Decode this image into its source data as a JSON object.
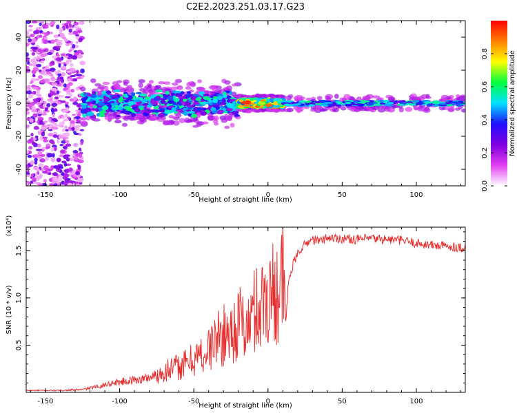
{
  "title": "C2E2.2023.251.03.17.G23",
  "chart_data": [
    {
      "type": "heatmap",
      "title": "C2E2.2023.251.03.17.G23",
      "xlabel": "Height of straight line (km)",
      "ylabel": "Frequency (Hz)",
      "xlim": [
        -163,
        133
      ],
      "ylim": [
        -50,
        50
      ],
      "x_ticks": [
        -150,
        -100,
        -50,
        0,
        50,
        100
      ],
      "x_tick_labels": [
        "-150",
        "-100",
        "-50",
        "0",
        "50",
        "100"
      ],
      "y_ticks": [
        -40,
        -20,
        0,
        20,
        40
      ],
      "y_tick_labels": [
        "-40",
        "-20",
        "0",
        "20",
        "40"
      ],
      "grid": false,
      "colorbar": {
        "label": "Normalized spectral amplitude",
        "range": [
          0,
          1
        ],
        "ticks": [
          0,
          0.2,
          0.4,
          0.6,
          0.8
        ],
        "tick_labels": [
          "0.0",
          "0.2",
          "0.4",
          "0.6",
          "0.8"
        ],
        "colormap": "rainbow: white, magenta, purple, blue, cyan, green, yellow, orange, red",
        "colors": [
          "#ffffff",
          "#e040f0",
          "#8000e0",
          "#2010ff",
          "#00e0ff",
          "#00ff40",
          "#ffff00",
          "#ff8000",
          "#ff0000"
        ]
      },
      "regions": [
        {
          "x_range": [
            -163,
            -125
          ],
          "freq_range": [
            -50,
            50
          ],
          "amplitude": [
            0.05,
            0.35
          ],
          "pattern": "scattered noise"
        },
        {
          "x_range": [
            -125,
            -20
          ],
          "freq_center": 0,
          "freq_halfwidth": [
            5,
            10
          ],
          "amplitude": [
            0.2,
            0.6
          ],
          "pattern": "irregular clustered band"
        },
        {
          "x_range": [
            -20,
            10
          ],
          "freq_center": 0,
          "freq_halfwidth": 3,
          "amplitude": [
            0.4,
            0.95
          ],
          "pattern": "narrow band with peaks"
        },
        {
          "x_range": [
            10,
            133
          ],
          "freq_center": 0,
          "freq_halfwidth": 3,
          "amplitude": [
            0.3,
            0.6
          ],
          "pattern": "steady narrow band"
        }
      ]
    },
    {
      "type": "line",
      "xlabel": "Height of straight line (km)",
      "ylabel": "SNR (10 * v/v)",
      "y_scale_note": "(x10⁴)",
      "xlim": [
        -163,
        133
      ],
      "ylim": [
        0,
        1.75
      ],
      "x_ticks": [
        -150,
        -100,
        -50,
        0,
        50,
        100
      ],
      "x_tick_labels": [
        "-150",
        "-100",
        "-50",
        "0",
        "50",
        "100"
      ],
      "y_ticks": [
        0.5,
        1.0,
        1.5
      ],
      "y_tick_labels": [
        "0.5",
        "1.0",
        "1.5"
      ],
      "grid": false,
      "line_color": "#e83030",
      "series": [
        {
          "x": [
            -163,
            -140,
            -125,
            -115,
            -105,
            -95,
            -85,
            -75,
            -68,
            -62,
            -55,
            -48,
            -42,
            -36,
            -30,
            -24,
            -18,
            -14,
            -10,
            -6,
            -2,
            2,
            6,
            10,
            12,
            14,
            18,
            22,
            26,
            30,
            35,
            40,
            50,
            60,
            70,
            80,
            90,
            100,
            110,
            120,
            133
          ],
          "y": [
            0.02,
            0.02,
            0.03,
            0.06,
            0.1,
            0.12,
            0.14,
            0.18,
            0.24,
            0.26,
            0.3,
            0.38,
            0.4,
            0.55,
            0.6,
            0.65,
            0.75,
            0.65,
            0.85,
            0.9,
            1.0,
            1.05,
            1.1,
            1.18,
            0.75,
            1.2,
            1.4,
            1.52,
            1.58,
            1.62,
            1.6,
            1.64,
            1.63,
            1.62,
            1.63,
            1.62,
            1.61,
            1.58,
            1.56,
            1.55,
            1.53
          ]
        }
      ]
    }
  ]
}
